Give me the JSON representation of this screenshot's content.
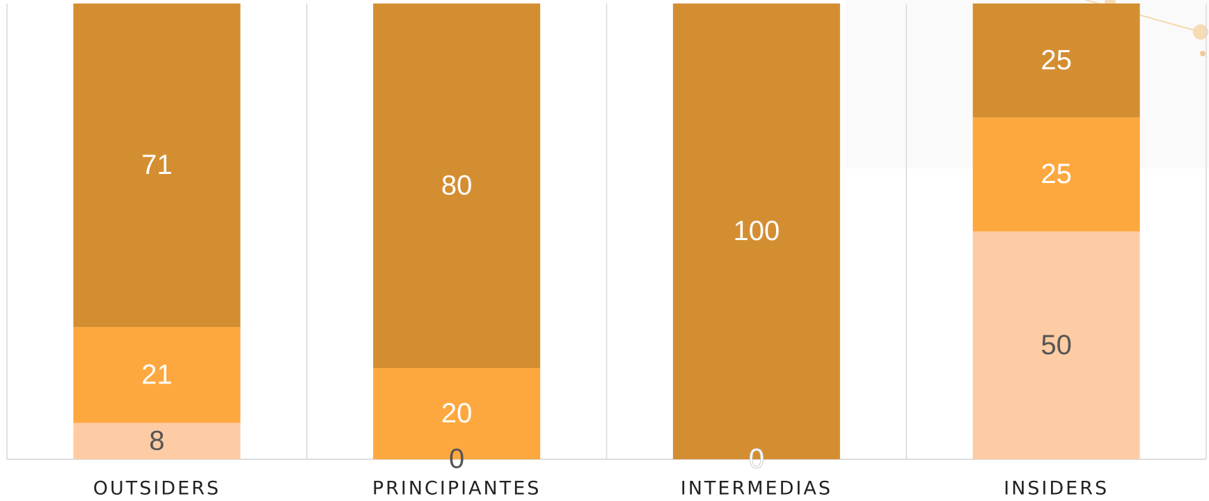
{
  "chart_data": {
    "type": "stacked-bar",
    "categories": [
      "OUTSIDERS",
      "PRINCIPIANTES",
      "INTERMEDIAS",
      "INSIDERS"
    ],
    "series": [
      {
        "color": "#fecca4",
        "label_color": "#555555",
        "values": [
          8,
          0,
          null,
          50
        ]
      },
      {
        "color": "#fda83e",
        "label_color": "#ffffff",
        "values": [
          21,
          20,
          0,
          25
        ]
      },
      {
        "color": "#d48e32",
        "label_color": "#ffffff",
        "values": [
          71,
          80,
          100,
          25
        ]
      }
    ],
    "ylim": [
      0,
      100
    ]
  }
}
